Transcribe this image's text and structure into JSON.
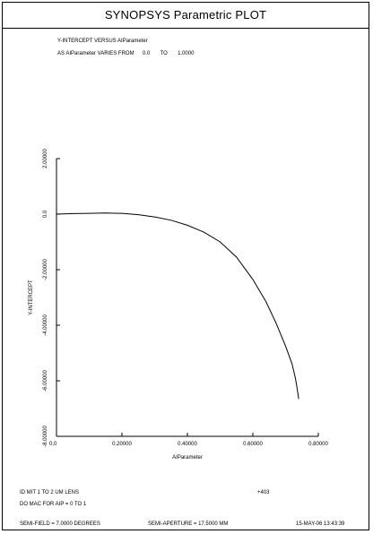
{
  "window": {
    "title": "SYNOPSYS Parametric PLOT"
  },
  "header": {
    "line1": "Y-INTERCEPT VERSUS AIParameter",
    "line2_prefix": "AS AIParameter VARIES FROM",
    "range_from": "0.0",
    "range_to_word": "TO",
    "range_to": "1.0000"
  },
  "footer": {
    "lens_line": "ID MIT 1 TO 2 UM LENS",
    "mac_line": "DO MAC FOR AIP = 0 TO 1",
    "code": "+403",
    "semi_field": "SEMI-FIELD = 7.0000 DEGREES",
    "semi_aperture": "SEMI-APERTURE = 17.5000 MM",
    "timestamp": "15-MAY-06 13:43:39"
  },
  "chart_data": {
    "type": "line",
    "title": "Y-INTERCEPT VERSUS AIParameter",
    "xlabel": "AIParameter",
    "ylabel": "Y-INTERCEPT",
    "xlim": [
      0,
      0.8
    ],
    "ylim": [
      -8,
      2
    ],
    "x_ticks": [
      0,
      0.2,
      0.4,
      0.6,
      0.8
    ],
    "x_tick_labels": [
      "0.0",
      "0.20000",
      "0.40000",
      "0.60000",
      "0.80000"
    ],
    "y_ticks": [
      2,
      0,
      -2,
      -4,
      -6,
      -8
    ],
    "y_tick_labels": [
      "2.00000",
      "0.0",
      "-2.00000",
      "-4.00000",
      "-6.00000",
      "-8.00000"
    ],
    "grid": false,
    "series": [
      {
        "color": "#000000",
        "x": [
          0.0,
          0.05,
          0.1,
          0.15,
          0.2,
          0.25,
          0.3,
          0.35,
          0.4,
          0.45,
          0.5,
          0.55,
          0.6,
          0.64,
          0.67,
          0.7,
          0.72,
          0.73,
          0.735,
          0.74
        ],
        "y": [
          0.0,
          0.02,
          0.03,
          0.04,
          0.03,
          -0.02,
          -0.1,
          -0.22,
          -0.4,
          -0.65,
          -1.0,
          -1.55,
          -2.35,
          -3.15,
          -3.9,
          -4.75,
          -5.4,
          -5.9,
          -6.25,
          -6.65
        ]
      }
    ]
  }
}
